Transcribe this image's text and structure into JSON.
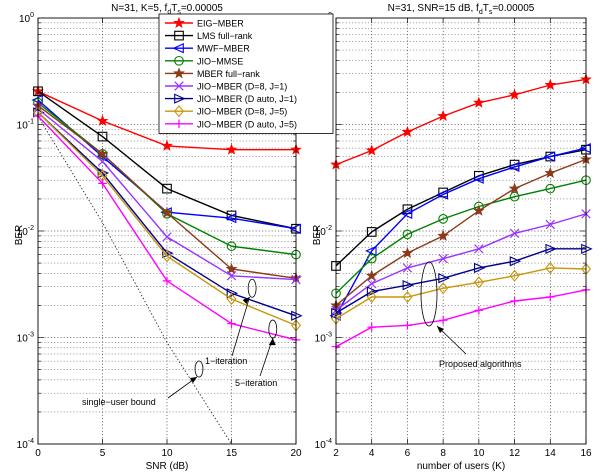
{
  "chart_data": [
    {
      "type": "line",
      "title": "N=31, K=5, f",
      "title_sub": "d",
      "title_mid": "T",
      "title_sub2": "s",
      "title_tail": "=0.00005",
      "xlabel": "SNR (dB)",
      "ylabel": "BER",
      "xlim": [
        0,
        20
      ],
      "ylim": [
        0.0001,
        1
      ],
      "yscale": "log",
      "grid": true,
      "xticks": [
        "0",
        "5",
        "10",
        "15",
        "20"
      ],
      "yticks": [
        {
          "base": "10",
          "exp": "0"
        },
        {
          "base": "10",
          "exp": "-1"
        },
        {
          "base": "10",
          "exp": "-2"
        },
        {
          "base": "10",
          "exp": "-3"
        },
        {
          "base": "10",
          "exp": "-4"
        }
      ],
      "x": [
        0,
        5,
        10,
        15,
        20
      ],
      "series": [
        {
          "name": "EIG−MBER",
          "color": "#ff0000",
          "marker": "star",
          "values": [
            0.205,
            0.108,
            0.063,
            0.058,
            0.058
          ]
        },
        {
          "name": "LMS full−rank",
          "color": "#000000",
          "marker": "square",
          "values": [
            0.205,
            0.077,
            0.025,
            0.014,
            0.0105
          ]
        },
        {
          "name": "MWF−MBER",
          "color": "#0000ff",
          "marker": "triangle-left",
          "values": [
            0.17,
            0.05,
            0.015,
            0.0132,
            0.0105
          ]
        },
        {
          "name": "JIO−MMSE",
          "color": "#008000",
          "marker": "circle",
          "values": [
            0.16,
            0.053,
            0.0145,
            0.0072,
            0.006
          ]
        },
        {
          "name": "MBER full−rank",
          "color": "#8b3a1a",
          "marker": "star",
          "values": [
            0.15,
            0.053,
            0.0148,
            0.0044,
            0.0036
          ]
        },
        {
          "name": "JIO−MBER (D=8, J=1)",
          "color": "#9933ff",
          "marker": "x",
          "values": [
            0.14,
            0.045,
            0.0088,
            0.0038,
            0.0035
          ]
        },
        {
          "name": "JIO−MBER (D auto, J=1)",
          "color": "#00008b",
          "marker": "triangle-right",
          "values": [
            0.13,
            0.035,
            0.0062,
            0.0026,
            0.0016
          ]
        },
        {
          "name": "JIO−MBER (D=8, J=5)",
          "color": "#c8960a",
          "marker": "diamond",
          "values": [
            0.13,
            0.033,
            0.0058,
            0.0023,
            0.0013
          ]
        },
        {
          "name": "JIO−MBER (D auto, J=5)",
          "color": "#ff00ff",
          "marker": "plus",
          "values": [
            0.12,
            0.028,
            0.0034,
            0.00135,
            0.00095
          ]
        }
      ],
      "bound": {
        "name": "single−user bound",
        "x": [
          0,
          5,
          10,
          15
        ],
        "values": [
          0.12,
          0.012,
          0.0009,
          0.0001
        ]
      },
      "annotations": [
        {
          "text": "1−iteration"
        },
        {
          "text": "5−iteration"
        },
        {
          "text": "single−user bound"
        }
      ]
    },
    {
      "type": "line",
      "title": "N=31, SNR=15 dB, f",
      "title_sub": "d",
      "title_mid": "T",
      "title_sub2": "s",
      "title_tail": "=0.00005",
      "xlabel": "number of users (K)",
      "ylabel": "BER",
      "xlim": [
        2,
        16
      ],
      "ylim": [
        0.0001,
        1
      ],
      "yscale": "log",
      "grid": true,
      "xticks": [
        "2",
        "4",
        "6",
        "8",
        "10",
        "12",
        "14",
        "16"
      ],
      "yticks": [
        {
          "base": "10",
          "exp": "0"
        },
        {
          "base": "10",
          "exp": "-1"
        },
        {
          "base": "10",
          "exp": "-2"
        },
        {
          "base": "10",
          "exp": "-3"
        },
        {
          "base": "10",
          "exp": "-4"
        }
      ],
      "x": [
        2,
        4,
        6,
        8,
        10,
        12,
        14,
        16
      ],
      "series": [
        {
          "name": "EIG−MBER",
          "color": "#ff0000",
          "marker": "star",
          "values": [
            0.042,
            0.057,
            0.085,
            0.12,
            0.16,
            0.19,
            0.235,
            0.265
          ]
        },
        {
          "name": "LMS full−rank",
          "color": "#000000",
          "marker": "square",
          "values": [
            0.0047,
            0.0098,
            0.016,
            0.023,
            0.033,
            0.042,
            0.05,
            0.058
          ]
        },
        {
          "name": "MWF−MBER",
          "color": "#0000ff",
          "marker": "triangle-left",
          "values": [
            0.0016,
            0.0065,
            0.0145,
            0.022,
            0.031,
            0.04,
            0.05,
            0.06
          ]
        },
        {
          "name": "JIO−MMSE",
          "color": "#008000",
          "marker": "circle",
          "values": [
            0.0026,
            0.0055,
            0.0093,
            0.013,
            0.017,
            0.021,
            0.025,
            0.03
          ]
        },
        {
          "name": "MBER full−rank",
          "color": "#8b3a1a",
          "marker": "star",
          "values": [
            0.002,
            0.0038,
            0.0062,
            0.009,
            0.0155,
            0.025,
            0.035,
            0.047
          ]
        },
        {
          "name": "JIO−MBER (D=8, J=1)",
          "color": "#9933ff",
          "marker": "x",
          "values": [
            0.0018,
            0.0032,
            0.0045,
            0.0055,
            0.0068,
            0.0095,
            0.0115,
            0.0145
          ]
        },
        {
          "name": "JIO−MBER (D auto, J=1)",
          "color": "#00008b",
          "marker": "triangle-right",
          "values": [
            0.0017,
            0.0027,
            0.0031,
            0.0036,
            0.0045,
            0.0052,
            0.0068,
            0.0068
          ]
        },
        {
          "name": "JIO−MBER (D=8, J=5)",
          "color": "#c8960a",
          "marker": "diamond",
          "values": [
            0.0015,
            0.0024,
            0.0024,
            0.0029,
            0.0033,
            0.0038,
            0.0045,
            0.0044
          ]
        },
        {
          "name": "JIO−MBER (D auto, J=5)",
          "color": "#ff00ff",
          "marker": "plus",
          "values": [
            0.00082,
            0.00125,
            0.0013,
            0.00145,
            0.0018,
            0.0022,
            0.0024,
            0.0028
          ]
        }
      ],
      "annotations": [
        {
          "text": "Proposed algorithms"
        }
      ]
    }
  ]
}
